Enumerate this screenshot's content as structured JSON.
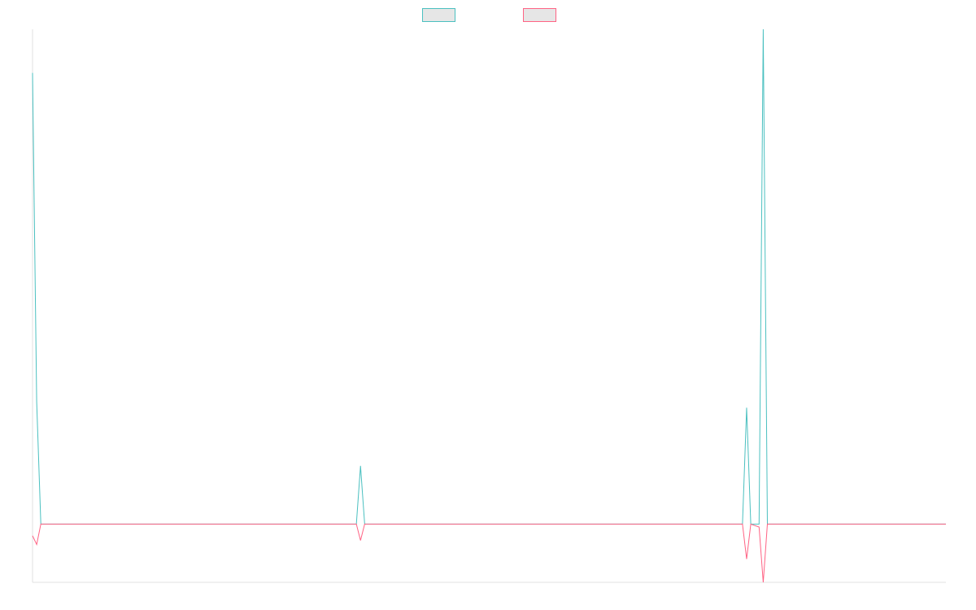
{
  "chart_data": {
    "type": "line",
    "title": "",
    "xlabel": "",
    "ylabel": "",
    "grid": false,
    "legend": "top-center",
    "x": [
      0,
      1,
      2,
      78,
      79,
      80,
      171,
      172,
      173,
      175,
      176,
      177,
      178,
      220
    ],
    "ylim": [
      -10,
      85
    ],
    "series": [
      {
        "color": "#4bc0c0",
        "fill": "#e6e6e6",
        "values": [
          77.5,
          21,
          0,
          0,
          10,
          0,
          0,
          20,
          0,
          0,
          85,
          0,
          0,
          0
        ]
      },
      {
        "color": "#ff6384",
        "fill": "#e6e6e6",
        "values": [
          -2,
          -3.5,
          0,
          0,
          -2.8,
          0,
          0,
          -6,
          0,
          -0.5,
          -10,
          0,
          0,
          0
        ]
      }
    ]
  }
}
